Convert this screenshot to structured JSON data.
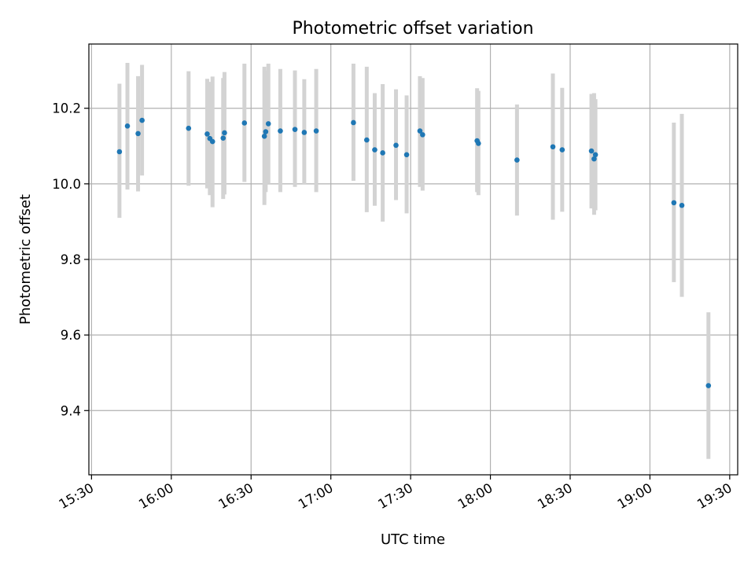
{
  "chart_data": {
    "type": "scatter",
    "title": "Photometric offset variation",
    "xlabel": "UTC time",
    "ylabel": "Photometric offset",
    "x_axis": "time",
    "xlim": [
      "15:29",
      "19:33"
    ],
    "ylim": [
      9.23,
      10.37
    ],
    "x_ticks": [
      "15:30",
      "16:00",
      "16:30",
      "17:00",
      "17:30",
      "18:00",
      "18:30",
      "19:00",
      "19:30"
    ],
    "y_ticks": [
      9.4,
      9.6,
      9.8,
      10.0,
      10.2
    ],
    "y_tick_labels": [
      "9.4",
      "9.6",
      "9.8",
      "10.0",
      "10.2"
    ],
    "grid": true,
    "error_bar_color": "#d3d3d3",
    "marker_color": "#1f77b4",
    "series": [
      {
        "points": [
          {
            "x": "15:40:30",
            "y": 10.085,
            "ymin": 9.91,
            "ymax": 10.265
          },
          {
            "x": "15:43:30",
            "y": 10.153,
            "ymin": 9.985,
            "ymax": 10.32
          },
          {
            "x": "15:47:30",
            "y": 10.133,
            "ymin": 9.98,
            "ymax": 10.285
          },
          {
            "x": "15:49:00",
            "y": 10.168,
            "ymin": 10.022,
            "ymax": 10.315
          },
          {
            "x": "16:06:30",
            "y": 10.147,
            "ymin": 9.995,
            "ymax": 10.298
          },
          {
            "x": "16:13:30",
            "y": 10.132,
            "ymin": 9.988,
            "ymax": 10.278
          },
          {
            "x": "16:14:30",
            "y": 10.12,
            "ymin": 9.97,
            "ymax": 10.27
          },
          {
            "x": "16:15:30",
            "y": 10.112,
            "ymin": 9.938,
            "ymax": 10.284
          },
          {
            "x": "16:19:30",
            "y": 10.121,
            "ymin": 9.96,
            "ymax": 10.28
          },
          {
            "x": "16:20:00",
            "y": 10.135,
            "ymin": 9.972,
            "ymax": 10.296
          },
          {
            "x": "16:27:30",
            "y": 10.161,
            "ymin": 10.005,
            "ymax": 10.318
          },
          {
            "x": "16:35:00",
            "y": 10.126,
            "ymin": 9.944,
            "ymax": 10.31
          },
          {
            "x": "16:35:30",
            "y": 10.138,
            "ymin": 9.978,
            "ymax": 10.3
          },
          {
            "x": "16:36:30",
            "y": 10.159,
            "ymin": 10.0,
            "ymax": 10.318
          },
          {
            "x": "16:41:00",
            "y": 10.14,
            "ymin": 9.978,
            "ymax": 10.304
          },
          {
            "x": "16:46:30",
            "y": 10.144,
            "ymin": 9.992,
            "ymax": 10.3
          },
          {
            "x": "16:50:00",
            "y": 10.136,
            "ymin": 9.998,
            "ymax": 10.277
          },
          {
            "x": "16:54:30",
            "y": 10.14,
            "ymin": 9.978,
            "ymax": 10.304
          },
          {
            "x": "17:08:30",
            "y": 10.162,
            "ymin": 10.008,
            "ymax": 10.318
          },
          {
            "x": "17:13:30",
            "y": 10.116,
            "ymin": 9.925,
            "ymax": 10.31
          },
          {
            "x": "17:16:30",
            "y": 10.09,
            "ymin": 9.942,
            "ymax": 10.24
          },
          {
            "x": "17:19:30",
            "y": 10.082,
            "ymin": 9.9,
            "ymax": 10.264
          },
          {
            "x": "17:24:30",
            "y": 10.102,
            "ymin": 9.957,
            "ymax": 10.25
          },
          {
            "x": "17:28:30",
            "y": 10.077,
            "ymin": 9.922,
            "ymax": 10.234
          },
          {
            "x": "17:33:30",
            "y": 10.14,
            "ymin": 9.992,
            "ymax": 10.285
          },
          {
            "x": "17:34:30",
            "y": 10.13,
            "ymin": 9.982,
            "ymax": 10.28
          },
          {
            "x": "17:55:00",
            "y": 10.114,
            "ymin": 9.978,
            "ymax": 10.253
          },
          {
            "x": "17:55:30",
            "y": 10.107,
            "ymin": 9.97,
            "ymax": 10.246
          },
          {
            "x": "18:10:00",
            "y": 10.063,
            "ymin": 9.916,
            "ymax": 10.21
          },
          {
            "x": "18:23:30",
            "y": 10.098,
            "ymin": 9.905,
            "ymax": 10.292
          },
          {
            "x": "18:27:00",
            "y": 10.09,
            "ymin": 9.926,
            "ymax": 10.254
          },
          {
            "x": "18:38:00",
            "y": 10.087,
            "ymin": 9.935,
            "ymax": 10.238
          },
          {
            "x": "18:39:00",
            "y": 10.066,
            "ymin": 9.918,
            "ymax": 10.24
          },
          {
            "x": "18:39:30",
            "y": 10.077,
            "ymin": 9.93,
            "ymax": 10.224
          },
          {
            "x": "19:09:00",
            "y": 9.95,
            "ymin": 9.74,
            "ymax": 10.162
          },
          {
            "x": "19:12:00",
            "y": 9.943,
            "ymin": 9.701,
            "ymax": 10.185
          },
          {
            "x": "19:22:00",
            "y": 9.466,
            "ymin": 9.272,
            "ymax": 9.66
          }
        ]
      }
    ]
  }
}
